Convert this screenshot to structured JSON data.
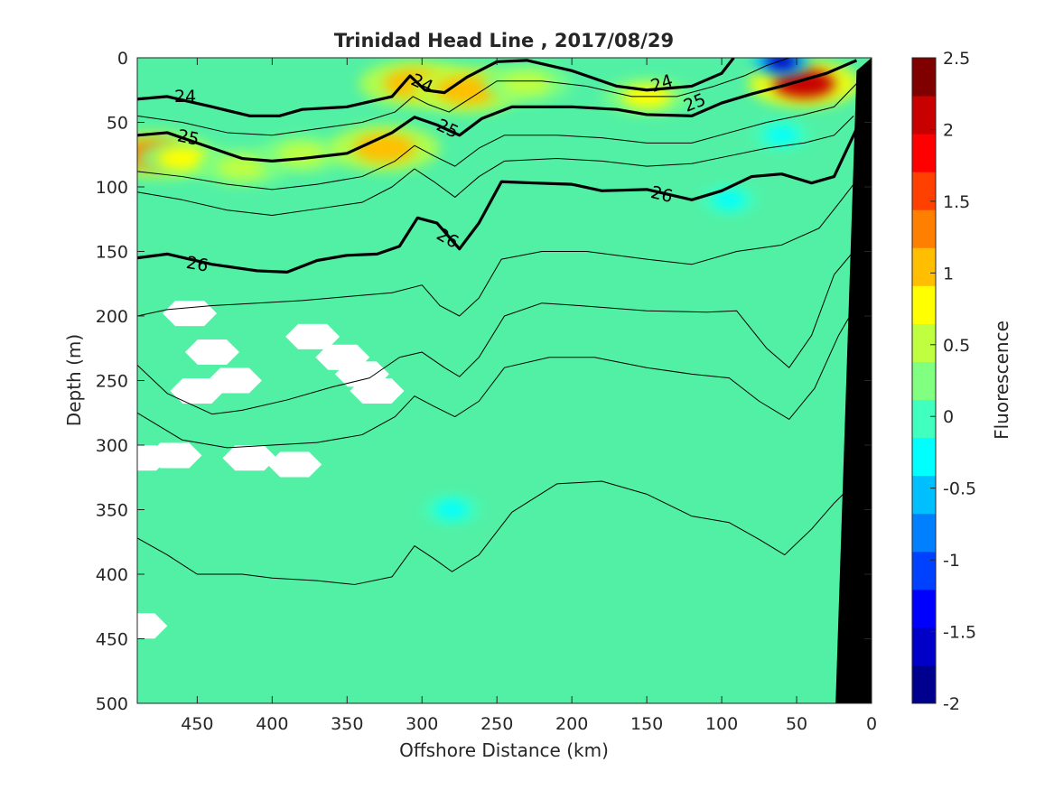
{
  "chart_data": {
    "type": "heatmap",
    "title": "Trinidad Head Line , 2017/08/29",
    "xlabel": "Offshore Distance (km)",
    "ylabel": "Depth (m)",
    "colorbar_label": "Fluorescence",
    "xlim": [
      490,
      0
    ],
    "ylim": [
      0,
      500
    ],
    "x_ticks": [
      "450",
      "400",
      "350",
      "300",
      "250",
      "200",
      "150",
      "100",
      "50",
      "0"
    ],
    "y_ticks": [
      "0",
      "50",
      "100",
      "150",
      "200",
      "250",
      "300",
      "350",
      "400",
      "450",
      "500"
    ],
    "colorbar_ticks": [
      "2.5",
      "2",
      "1.5",
      "1",
      "0.5",
      "0",
      "-0.5",
      "-1",
      "-1.5",
      "-2"
    ],
    "clim": [
      -2,
      2.5
    ],
    "colormap_levels": [
      "#00008f",
      "#0000c8",
      "#0000ff",
      "#0040ff",
      "#0080ff",
      "#00bfff",
      "#00ffff",
      "#40ffbf",
      "#80ff80",
      "#bfff40",
      "#ffff00",
      "#ffbf00",
      "#ff8000",
      "#ff4000",
      "#ff0000",
      "#c80000",
      "#800000"
    ],
    "background_value": 0.1,
    "background_color": "#52f0a5",
    "fluorescence_features": [
      {
        "kind": "high",
        "value": 1.2,
        "x": 480,
        "depth": 75
      },
      {
        "kind": "high",
        "value": 0.8,
        "x": 460,
        "depth": 78
      },
      {
        "kind": "high",
        "value": 0.5,
        "x": 420,
        "depth": 85
      },
      {
        "kind": "high",
        "value": 0.6,
        "x": 380,
        "depth": 75
      },
      {
        "kind": "high",
        "value": 1.0,
        "x": 325,
        "depth": 70
      },
      {
        "kind": "high",
        "value": 1.1,
        "x": 305,
        "depth": 20
      },
      {
        "kind": "high",
        "value": 1.0,
        "x": 270,
        "depth": 25
      },
      {
        "kind": "high",
        "value": 0.6,
        "x": 230,
        "depth": 20
      },
      {
        "kind": "high",
        "value": 0.7,
        "x": 150,
        "depth": 30
      },
      {
        "kind": "high",
        "value": 2.0,
        "x": 45,
        "depth": 20
      },
      {
        "kind": "low",
        "value": -1.5,
        "x": 60,
        "depth": 3
      },
      {
        "kind": "low",
        "value": -0.3,
        "x": 280,
        "depth": 350
      },
      {
        "kind": "low",
        "value": -0.3,
        "x": 95,
        "depth": 110
      },
      {
        "kind": "low",
        "value": -0.3,
        "x": 60,
        "depth": 60
      }
    ],
    "density_contours": [
      {
        "label": "24",
        "bold": true,
        "points": [
          [
            490,
            32
          ],
          [
            470,
            30
          ],
          [
            440,
            38
          ],
          [
            415,
            45
          ],
          [
            395,
            45
          ],
          [
            380,
            40
          ],
          [
            350,
            38
          ],
          [
            320,
            30
          ],
          [
            308,
            14
          ],
          [
            298,
            25
          ],
          [
            285,
            27
          ],
          [
            270,
            15
          ],
          [
            250,
            3
          ],
          [
            230,
            2
          ],
          [
            200,
            10
          ],
          [
            170,
            22
          ],
          [
            150,
            25
          ],
          [
            120,
            22
          ],
          [
            100,
            12
          ],
          [
            92,
            0
          ]
        ]
      },
      {
        "label": "25",
        "bold": true,
        "points": [
          [
            490,
            60
          ],
          [
            470,
            58
          ],
          [
            440,
            70
          ],
          [
            420,
            78
          ],
          [
            400,
            80
          ],
          [
            380,
            78
          ],
          [
            350,
            74
          ],
          [
            320,
            58
          ],
          [
            305,
            46
          ],
          [
            290,
            52
          ],
          [
            275,
            60
          ],
          [
            260,
            47
          ],
          [
            240,
            38
          ],
          [
            200,
            38
          ],
          [
            170,
            40
          ],
          [
            150,
            44
          ],
          [
            120,
            45
          ],
          [
            100,
            35
          ],
          [
            80,
            28
          ],
          [
            60,
            22
          ],
          [
            30,
            12
          ],
          [
            10,
            2
          ]
        ]
      },
      {
        "label": "26",
        "bold": true,
        "points": [
          [
            490,
            155
          ],
          [
            470,
            152
          ],
          [
            440,
            160
          ],
          [
            410,
            165
          ],
          [
            390,
            166
          ],
          [
            370,
            157
          ],
          [
            350,
            153
          ],
          [
            330,
            152
          ],
          [
            315,
            146
          ],
          [
            303,
            124
          ],
          [
            290,
            128
          ],
          [
            275,
            148
          ],
          [
            262,
            128
          ],
          [
            247,
            96
          ],
          [
            225,
            97
          ],
          [
            200,
            98
          ],
          [
            180,
            103
          ],
          [
            150,
            102
          ],
          [
            120,
            110
          ],
          [
            100,
            103
          ],
          [
            80,
            92
          ],
          [
            60,
            90
          ],
          [
            40,
            97
          ],
          [
            25,
            92
          ],
          [
            10,
            55
          ]
        ]
      },
      {
        "label": "",
        "bold": false,
        "points": [
          [
            490,
            238
          ],
          [
            470,
            260
          ],
          [
            440,
            276
          ],
          [
            420,
            273
          ],
          [
            390,
            265
          ],
          [
            360,
            255
          ],
          [
            335,
            248
          ],
          [
            315,
            232
          ],
          [
            300,
            228
          ],
          [
            285,
            240
          ],
          [
            275,
            247
          ],
          [
            262,
            232
          ],
          [
            245,
            200
          ],
          [
            220,
            190
          ],
          [
            195,
            192
          ],
          [
            150,
            196
          ],
          [
            110,
            197
          ],
          [
            90,
            196
          ],
          [
            70,
            225
          ],
          [
            55,
            240
          ],
          [
            40,
            215
          ],
          [
            25,
            168
          ],
          [
            12,
            150
          ]
        ]
      },
      {
        "label": "",
        "bold": false,
        "points": [
          [
            490,
            372
          ],
          [
            470,
            385
          ],
          [
            450,
            400
          ],
          [
            420,
            400
          ],
          [
            400,
            403
          ],
          [
            370,
            405
          ],
          [
            345,
            408
          ],
          [
            320,
            402
          ],
          [
            305,
            378
          ],
          [
            292,
            388
          ],
          [
            280,
            398
          ],
          [
            262,
            385
          ],
          [
            240,
            352
          ],
          [
            210,
            330
          ],
          [
            180,
            328
          ],
          [
            150,
            338
          ],
          [
            120,
            355
          ],
          [
            95,
            360
          ],
          [
            75,
            373
          ],
          [
            58,
            385
          ],
          [
            40,
            365
          ],
          [
            25,
            345
          ],
          [
            12,
            330
          ]
        ]
      }
    ],
    "no_data_regions": [
      {
        "x": 455,
        "depth": 198
      },
      {
        "x": 440,
        "depth": 228
      },
      {
        "x": 450,
        "depth": 258
      },
      {
        "x": 425,
        "depth": 250
      },
      {
        "x": 415,
        "depth": 310
      },
      {
        "x": 465,
        "depth": 308
      },
      {
        "x": 385,
        "depth": 315
      },
      {
        "x": 373,
        "depth": 216
      },
      {
        "x": 353,
        "depth": 232
      },
      {
        "x": 330,
        "depth": 258
      },
      {
        "x": 340,
        "depth": 245
      },
      {
        "x": 488,
        "depth": 440
      },
      {
        "x": 487,
        "depth": 310
      }
    ],
    "seafloor": [
      [
        24,
        500
      ],
      [
        10,
        10
      ],
      [
        0,
        0
      ],
      [
        0,
        500
      ]
    ],
    "grid": false,
    "legend": "none"
  }
}
